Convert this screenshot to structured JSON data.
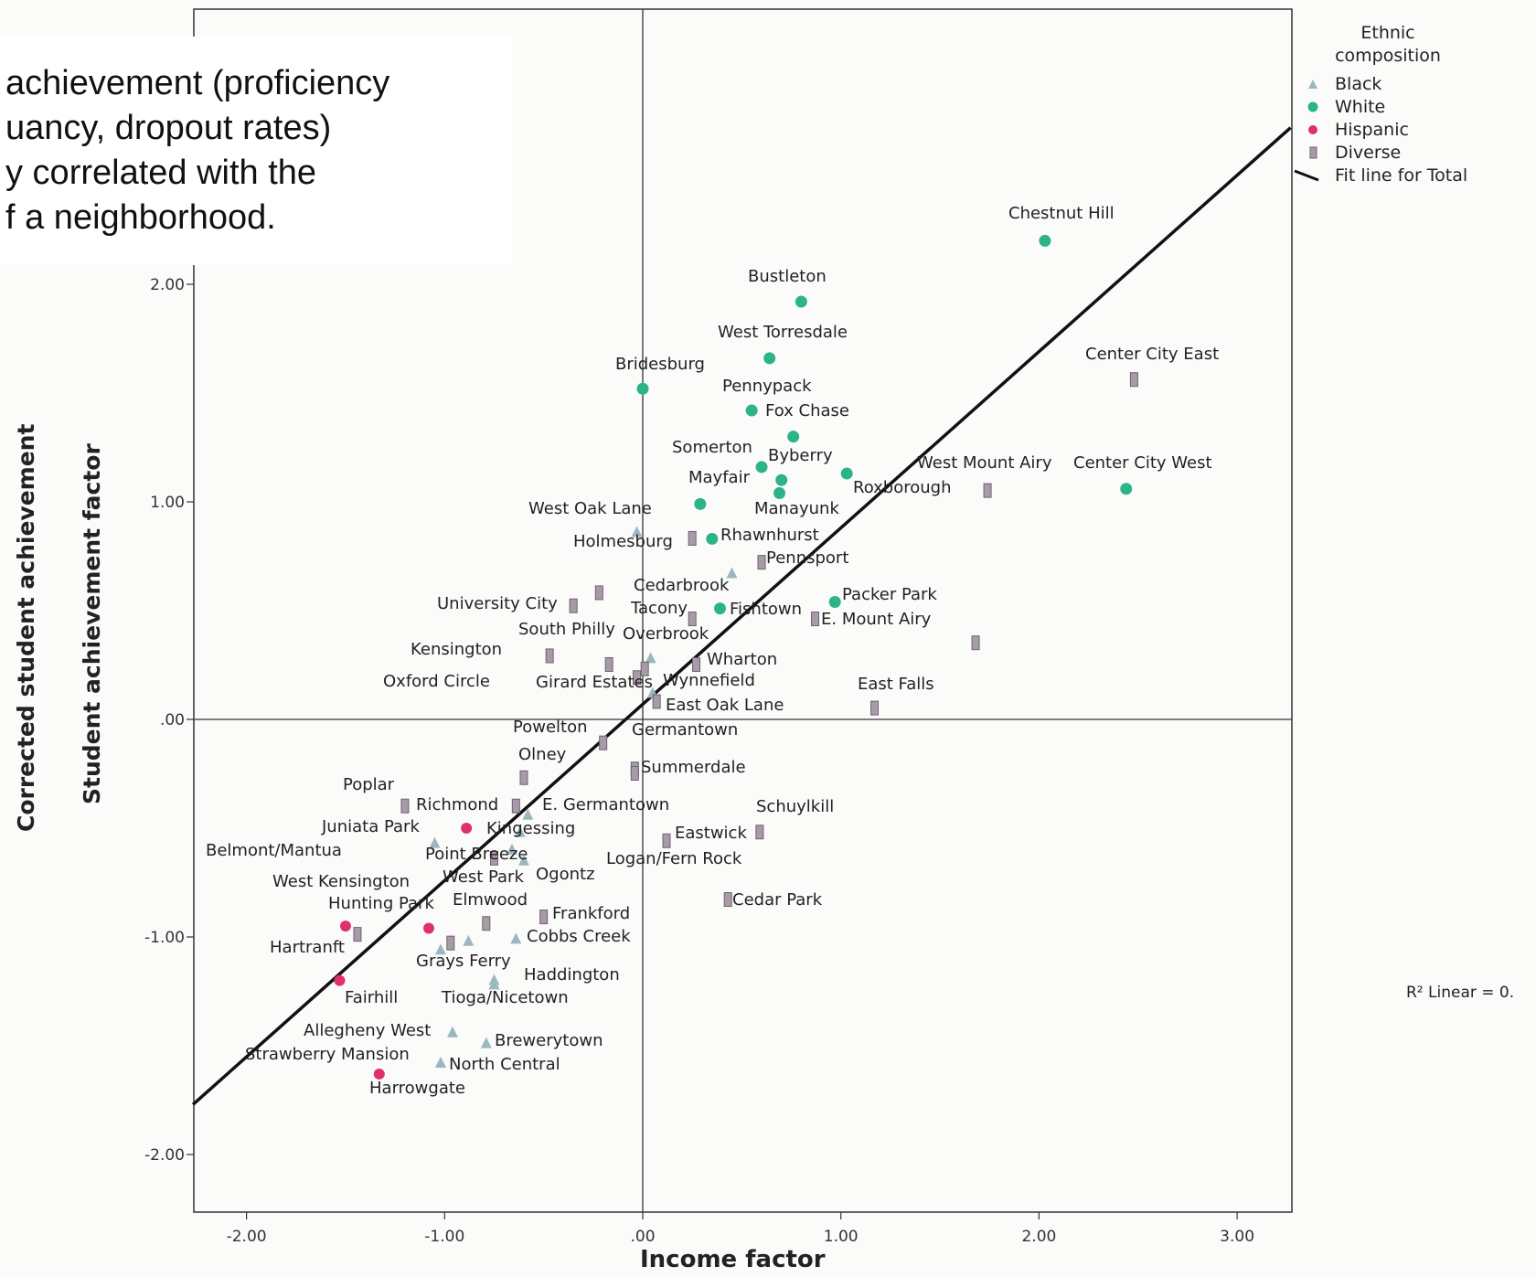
{
  "slide": {
    "lines": [
      "achievement (proficiency",
      "uancy, dropout rates)",
      "y correlated with the",
      "f a neighborhood."
    ]
  },
  "labels": {
    "y_outer": "Corrected student achievement",
    "y_inner": "Student achievement factor",
    "x": "Income factor",
    "legend_title_1": "Ethnic",
    "legend_title_2": "composition",
    "r2": "R² Linear = 0."
  },
  "colors": {
    "Black": "#9bb8bf",
    "White": "#2cb38a",
    "Hispanic": "#e0306c",
    "Diverse": "#a89aa6",
    "fit": "#111111"
  },
  "chart_data": {
    "type": "scatter",
    "xlabel": "Income factor",
    "ylabel": "Student achievement factor",
    "xlim": [
      -2.27,
      3.27
    ],
    "ylim": [
      -2.27,
      3.27
    ],
    "xticks": [
      -2,
      -1,
      0,
      1,
      2,
      3
    ],
    "xtick_labels": [
      "-2.00",
      "-1.00",
      ".00",
      "1.00",
      "2.00",
      "3.00"
    ],
    "yticks": [
      -2,
      -1,
      0,
      1,
      2
    ],
    "ytick_labels": [
      "-2.00",
      "-1.00",
      ".00",
      "1.00",
      "2.00"
    ],
    "legend": {
      "title": "Ethnic composition",
      "entries": [
        "Black",
        "White",
        "Hispanic",
        "Diverse",
        "Fit line for Total"
      ],
      "position": "top-right"
    },
    "fit_line": {
      "x": [
        -2.27,
        3.27
      ],
      "y": [
        -1.77,
        2.72
      ]
    },
    "points": [
      {
        "name": "Chestnut Hill",
        "x": 2.03,
        "y": 2.2,
        "group": "White"
      },
      {
        "name": "Bustleton",
        "x": 0.8,
        "y": 1.92,
        "group": "White"
      },
      {
        "name": "West Torresdale",
        "x": 0.64,
        "y": 1.66,
        "group": "White"
      },
      {
        "name": "Center City East",
        "x": 2.48,
        "y": 1.56,
        "group": "Diverse"
      },
      {
        "name": "Bridesburg",
        "x": 0.0,
        "y": 1.52,
        "group": "White"
      },
      {
        "name": "Pennypack",
        "x": 0.55,
        "y": 1.42,
        "group": "White"
      },
      {
        "name": "Fox Chase",
        "x": 0.76,
        "y": 1.3,
        "group": "White"
      },
      {
        "name": "Somerton",
        "x": 0.6,
        "y": 1.16,
        "group": "White"
      },
      {
        "name": "Byberry",
        "x": 0.7,
        "y": 1.1,
        "group": "White"
      },
      {
        "name": "Roxborough",
        "x": 1.03,
        "y": 1.13,
        "group": "White"
      },
      {
        "name": "Mayfair",
        "x": 0.69,
        "y": 1.04,
        "group": "White"
      },
      {
        "name": "West Mount Airy",
        "x": 1.74,
        "y": 1.05,
        "group": "Diverse"
      },
      {
        "name": "Center City West",
        "x": 2.44,
        "y": 1.06,
        "group": "White"
      },
      {
        "name": "Manayunk",
        "x": 0.29,
        "y": 0.99,
        "group": "White"
      },
      {
        "name": "West Oak Lane",
        "x": -0.03,
        "y": 0.86,
        "group": "Black"
      },
      {
        "name": "Holmesburg",
        "x": 0.25,
        "y": 0.83,
        "group": "Diverse"
      },
      {
        "name": "Rhawnhurst",
        "x": 0.35,
        "y": 0.83,
        "group": "White"
      },
      {
        "name": "Pennsport",
        "x": 0.6,
        "y": 0.72,
        "group": "Diverse"
      },
      {
        "name": "",
        "x": 0.45,
        "y": 0.67,
        "group": "Black"
      },
      {
        "name": "",
        "x": -0.22,
        "y": 0.58,
        "group": "Diverse"
      },
      {
        "name": "University City",
        "x": -0.35,
        "y": 0.52,
        "group": "Diverse"
      },
      {
        "name": "Cedarbrook",
        "x": 0.39,
        "y": 0.51,
        "group": "White"
      },
      {
        "name": "Packer Park",
        "x": 0.97,
        "y": 0.54,
        "group": "White"
      },
      {
        "name": "Tacony",
        "x": 0.25,
        "y": 0.46,
        "group": "Diverse"
      },
      {
        "name": "Fishtown",
        "x": 0.87,
        "y": 0.46,
        "group": "Diverse"
      },
      {
        "name": "E. Mount Airy",
        "x": 1.68,
        "y": 0.35,
        "group": "Diverse"
      },
      {
        "name": "Kensington",
        "x": -0.47,
        "y": 0.29,
        "group": "Diverse"
      },
      {
        "name": "South Philly",
        "x": -0.17,
        "y": 0.25,
        "group": "Diverse"
      },
      {
        "name": "Overbrook",
        "x": 0.04,
        "y": 0.28,
        "group": "Black"
      },
      {
        "name": "Wharton",
        "x": 0.27,
        "y": 0.25,
        "group": "Diverse"
      },
      {
        "name": "Oxford Circle",
        "x": 0.01,
        "y": 0.23,
        "group": "Diverse"
      },
      {
        "name": "Girard Estates",
        "x": -0.03,
        "y": 0.19,
        "group": "Diverse"
      },
      {
        "name": "Wynnefield",
        "x": 0.05,
        "y": 0.12,
        "group": "Black"
      },
      {
        "name": "East Oak Lane",
        "x": 0.07,
        "y": 0.08,
        "group": "Diverse"
      },
      {
        "name": "East Falls",
        "x": 1.17,
        "y": 0.05,
        "group": "Diverse"
      },
      {
        "name": "Powelton",
        "x": -0.2,
        "y": -0.11,
        "group": "Diverse"
      },
      {
        "name": "Germantown",
        "x": -0.04,
        "y": -0.23,
        "group": "Diverse"
      },
      {
        "name": "Olney",
        "x": -0.6,
        "y": -0.27,
        "group": "Diverse"
      },
      {
        "name": "Summerdale",
        "x": -0.04,
        "y": -0.25,
        "group": "Diverse"
      },
      {
        "name": "Poplar",
        "x": -1.2,
        "y": -0.4,
        "group": "Diverse"
      },
      {
        "name": "Richmond",
        "x": -0.64,
        "y": -0.4,
        "group": "Diverse"
      },
      {
        "name": "E. Germantown",
        "x": -0.58,
        "y": -0.44,
        "group": "Black"
      },
      {
        "name": "Juniata Park",
        "x": -0.89,
        "y": -0.5,
        "group": "Hispanic"
      },
      {
        "name": "Kingessing",
        "x": -0.62,
        "y": -0.52,
        "group": "Black"
      },
      {
        "name": "Schuylkill",
        "x": 0.59,
        "y": -0.52,
        "group": "Diverse"
      },
      {
        "name": "Eastwick",
        "x": 0.12,
        "y": -0.56,
        "group": "Diverse"
      },
      {
        "name": "Belmont/Mantua",
        "x": -1.05,
        "y": -0.57,
        "group": "Black"
      },
      {
        "name": "Point Breeze",
        "x": -0.75,
        "y": -0.64,
        "group": "Diverse"
      },
      {
        "name": "Ogontz",
        "x": -0.6,
        "y": -0.65,
        "group": "Black"
      },
      {
        "name": "Logan/Fern Rock",
        "x": -0.66,
        "y": -0.6,
        "group": "Black"
      },
      {
        "name": "West Kensington",
        "x": -1.5,
        "y": -0.95,
        "group": "Hispanic"
      },
      {
        "name": "West Park",
        "x": -0.79,
        "y": -0.94,
        "group": "Diverse"
      },
      {
        "name": "Cedar Park",
        "x": 0.43,
        "y": -0.83,
        "group": "Diverse"
      },
      {
        "name": "Hunting Park",
        "x": -1.08,
        "y": -0.96,
        "group": "Hispanic"
      },
      {
        "name": "Elmwood",
        "x": -0.97,
        "y": -1.03,
        "group": "Diverse"
      },
      {
        "name": "Frankford",
        "x": -0.5,
        "y": -0.91,
        "group": "Diverse"
      },
      {
        "name": "",
        "x": -1.44,
        "y": -0.99,
        "group": "Diverse"
      },
      {
        "name": "Hartranft",
        "x": -1.02,
        "y": -1.06,
        "group": "Black"
      },
      {
        "name": "Grays Ferry",
        "x": -0.88,
        "y": -1.02,
        "group": "Black"
      },
      {
        "name": "Cobbs Creek",
        "x": -0.64,
        "y": -1.01,
        "group": "Black"
      },
      {
        "name": "Fairhill",
        "x": -1.53,
        "y": -1.2,
        "group": "Hispanic"
      },
      {
        "name": "Haddington",
        "x": -0.75,
        "y": -1.2,
        "group": "Black"
      },
      {
        "name": "Tioga/Nicetown",
        "x": -0.75,
        "y": -1.22,
        "group": "Black"
      },
      {
        "name": "Allegheny West",
        "x": -0.96,
        "y": -1.44,
        "group": "Black"
      },
      {
        "name": "Brewerytown",
        "x": -0.79,
        "y": -1.49,
        "group": "Black"
      },
      {
        "name": "Strawberry Mansion",
        "x": -1.02,
        "y": -1.58,
        "group": "Black"
      },
      {
        "name": "North Central",
        "x": -1.02,
        "y": -1.58,
        "group": "Black"
      },
      {
        "name": "Harrowgate",
        "x": -1.33,
        "y": -1.63,
        "group": "Hispanic"
      }
    ]
  },
  "plot_labels": [
    {
      "text": "Chestnut Hill"
    },
    {
      "text": "Bustleton"
    },
    {
      "text": "West Torresdale"
    },
    {
      "text": "Center City East"
    },
    {
      "text": "Bridesburg"
    },
    {
      "text": "Pennypack"
    },
    {
      "text": "Fox Chase"
    },
    {
      "text": "Somerton"
    },
    {
      "text": "Byberry"
    },
    {
      "text": "West Mount Airy"
    },
    {
      "text": "Center City West"
    },
    {
      "text": "Mayfair"
    },
    {
      "text": "Roxborough"
    },
    {
      "text": "West Oak Lane"
    },
    {
      "text": "Manayunk"
    },
    {
      "text": "Holmesburg"
    },
    {
      "text": "Rhawnhurst"
    },
    {
      "text": "Pennsport"
    },
    {
      "text": "Cedarbrook"
    },
    {
      "text": "Packer Park"
    },
    {
      "text": "University City"
    },
    {
      "text": "Tacony"
    },
    {
      "text": "Fishtown"
    },
    {
      "text": "E. Mount Airy"
    },
    {
      "text": "South Philly"
    },
    {
      "text": "Overbrook"
    },
    {
      "text": "Kensington"
    },
    {
      "text": "Wharton"
    },
    {
      "text": "Oxford Circle"
    },
    {
      "text": "Girard Estates"
    },
    {
      "text": "Wynnefield"
    },
    {
      "text": "East Falls"
    },
    {
      "text": "East Oak Lane"
    },
    {
      "text": "Powelton"
    },
    {
      "text": "Germantown"
    },
    {
      "text": "Olney"
    },
    {
      "text": "Summerdale"
    },
    {
      "text": "Poplar"
    },
    {
      "text": "Richmond"
    },
    {
      "text": "E. Germantown"
    },
    {
      "text": "Schuylkill"
    },
    {
      "text": "Juniata Park"
    },
    {
      "text": "Kingessing"
    },
    {
      "text": "Eastwick"
    },
    {
      "text": "Belmont/Mantua"
    },
    {
      "text": "Point Breeze"
    },
    {
      "text": "Logan/Fern Rock"
    },
    {
      "text": "Ogontz"
    },
    {
      "text": "West Kensington"
    },
    {
      "text": "West Park"
    },
    {
      "text": "Cedar Park"
    },
    {
      "text": "Hunting Park"
    },
    {
      "text": "Elmwood"
    },
    {
      "text": "Frankford"
    },
    {
      "text": "Hartranft"
    },
    {
      "text": "Cobbs Creek"
    },
    {
      "text": "Grays Ferry"
    },
    {
      "text": "Haddington"
    },
    {
      "text": "Fairhill"
    },
    {
      "text": "Tioga/Nicetown"
    },
    {
      "text": "Allegheny West"
    },
    {
      "text": "Brewerytown"
    },
    {
      "text": "Strawberry Mansion"
    },
    {
      "text": "North Central"
    },
    {
      "text": "Harrowgate"
    }
  ],
  "legend_items": [
    {
      "label": "Black",
      "icon": "triangle-icon"
    },
    {
      "label": "White",
      "icon": "circle-icon"
    },
    {
      "label": "Hispanic",
      "icon": "circle-icon"
    },
    {
      "label": "Diverse",
      "icon": "square-icon"
    },
    {
      "label": "Fit line for Total",
      "icon": "line-icon"
    }
  ]
}
